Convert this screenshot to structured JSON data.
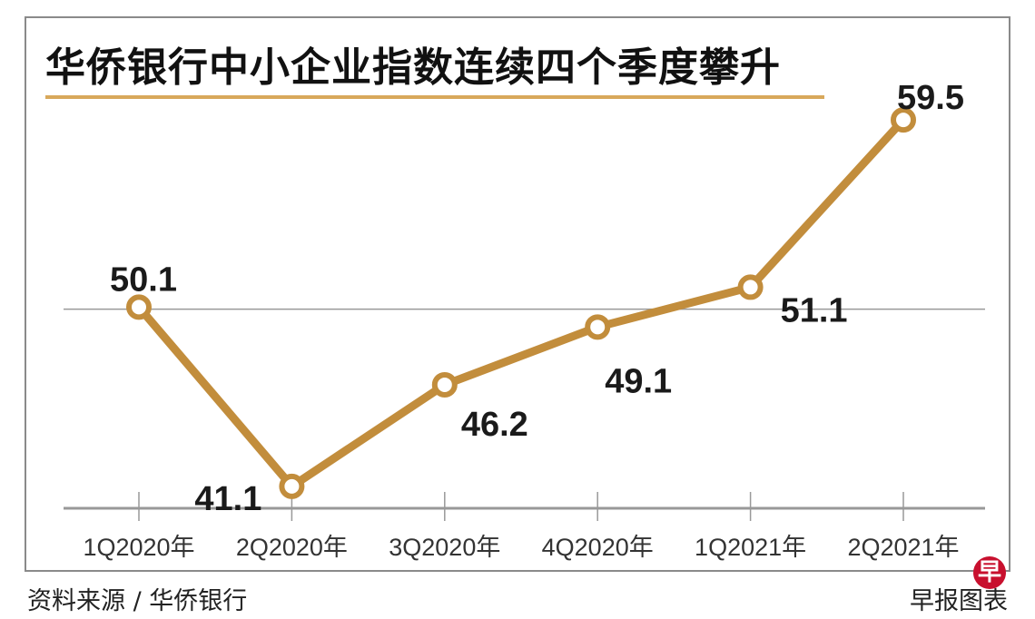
{
  "chart_data": {
    "type": "line",
    "title": "华侨银行中小企业指数连续四个季度攀升",
    "categories": [
      "1Q2020年",
      "2Q2020年",
      "3Q2020年",
      "4Q2020年",
      "1Q2021年",
      "2Q2021年"
    ],
    "values": [
      50.1,
      41.1,
      46.2,
      49.1,
      51.1,
      59.5
    ],
    "data_labels": [
      "50.1",
      "41.1",
      "46.2",
      "49.1",
      "51.1",
      "59.5"
    ],
    "reference_line": 50,
    "ylim": [
      40,
      64.7
    ],
    "xlabel": "",
    "ylabel": "",
    "grid": false,
    "line_color": "#C28D3C"
  },
  "footer": {
    "source": "资料来源 / 华侨银行",
    "credit": "早报图表",
    "logo_text": "早"
  }
}
